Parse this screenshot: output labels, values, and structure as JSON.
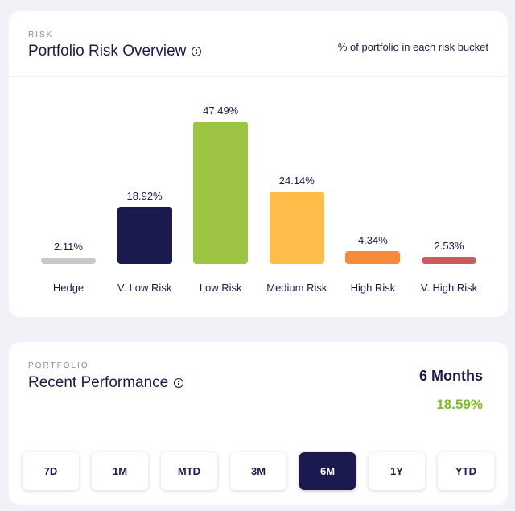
{
  "risk_card": {
    "eyebrow": "RISK",
    "title": "Portfolio Risk Overview",
    "subtitle": "% of portfolio in each risk bucket"
  },
  "chart_data": {
    "type": "bar",
    "title": "Portfolio Risk Overview",
    "categories": [
      "Hedge",
      "V. Low Risk",
      "Low Risk",
      "Medium Risk",
      "High Risk",
      "V. High Risk"
    ],
    "values": [
      2.11,
      18.92,
      47.49,
      24.14,
      4.34,
      2.53
    ],
    "value_labels": [
      "2.11%",
      "18.92%",
      "47.49%",
      "24.14%",
      "4.34%",
      "2.53%"
    ],
    "colors": [
      "#c9c9c9",
      "#1b1a4f",
      "#9ec444",
      "#fdbd48",
      "#f78a38",
      "#c95c5c"
    ],
    "unit": "%",
    "ylim": [
      0,
      47.49
    ],
    "grid": false,
    "legend": "none"
  },
  "perf_card": {
    "eyebrow": "PORTFOLIO",
    "title": "Recent Performance",
    "period_label": "6 Months",
    "period_return": "18.59%",
    "return_color": "#7cbd2c",
    "periods": [
      "7D",
      "1M",
      "MTD",
      "3M",
      "6M",
      "1Y",
      "YTD"
    ],
    "active_period": "6M"
  },
  "colors": {
    "background": "#f1f2f8",
    "card": "#ffffff",
    "text": "#1b1a4f",
    "accent": "#1b1a4f"
  },
  "icons": {
    "title_info": "info-icon"
  }
}
